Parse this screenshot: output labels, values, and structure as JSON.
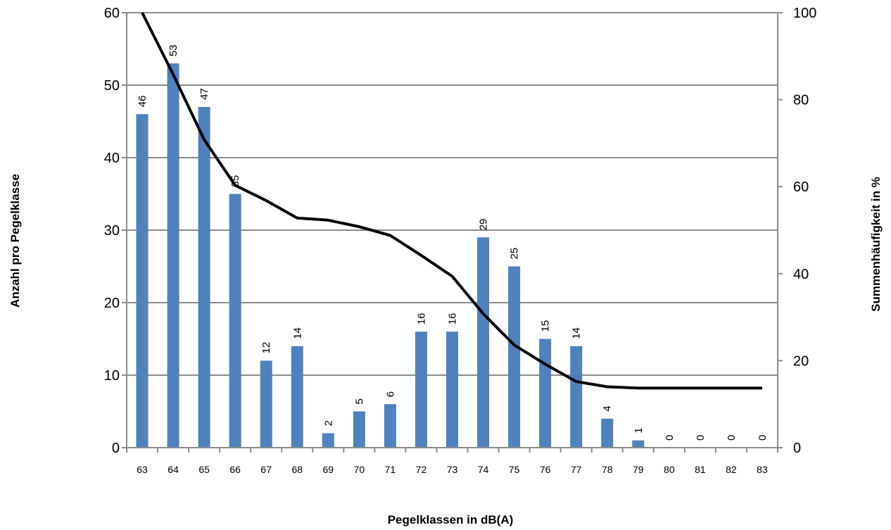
{
  "chart_data": {
    "type": "bar",
    "xlabel": "Pegelklassen in dB(A)",
    "ylabel": "Anzahl pro Pegelklasse",
    "y2label": "Summenhäufigkeit in %",
    "categories": [
      "63",
      "64",
      "65",
      "66",
      "67",
      "68",
      "69",
      "70",
      "71",
      "72",
      "73",
      "74",
      "75",
      "76",
      "77",
      "78",
      "79",
      "80",
      "81",
      "82",
      "83"
    ],
    "series": [
      {
        "type": "bar",
        "axis": "left",
        "values": [
          46,
          53,
          47,
          35,
          12,
          14,
          2,
          5,
          6,
          16,
          16,
          29,
          25,
          15,
          14,
          4,
          1,
          0,
          0,
          0,
          0
        ],
        "color": "#4F81BD"
      },
      {
        "type": "line",
        "axis": "right",
        "values": [
          100,
          85.8,
          70.8,
          60.3,
          56.8,
          52.8,
          52.3,
          50.8,
          48.8,
          44.2,
          39.4,
          30.8,
          23.6,
          19.2,
          15.2,
          14.0,
          13.7,
          13.7,
          13.7,
          13.7,
          13.7
        ],
        "color": "#000000"
      }
    ],
    "ylim": [
      0,
      60
    ],
    "yticks": [
      0,
      10,
      20,
      30,
      40,
      50,
      60
    ],
    "y2lim": [
      0,
      100
    ],
    "y2ticks": [
      0,
      20,
      40,
      60,
      80,
      100
    ],
    "grid": true,
    "legend": "none"
  }
}
